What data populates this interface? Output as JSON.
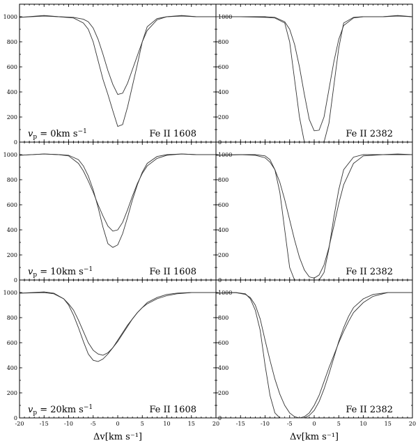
{
  "chart_data": {
    "type": "line",
    "grid": false,
    "xlim": [
      -20,
      20
    ],
    "ylim": [
      0,
      1100
    ],
    "x_ticks": [
      -20,
      -15,
      -10,
      -5,
      0,
      5,
      10,
      15,
      20
    ],
    "y_ticks": [
      0,
      200,
      400,
      600,
      800,
      1000
    ],
    "xlabel": "Δv[km s⁻¹]",
    "panels": [
      {
        "row": 0,
        "col": 0,
        "vp_label": "v",
        "vp_sub": "p",
        "vp_value": " = 0km s",
        "vp_exp": "−1",
        "line_label": "Fe II 1608",
        "series": [
          {
            "x": [
              -20,
              -15,
              -12,
              -9,
              -7,
              -6,
              -5,
              -4,
              -3,
              -2,
              -1,
              0,
              1,
              2,
              3,
              4,
              5,
              6,
              8,
              10,
              13,
              16,
              20
            ],
            "y": [
              995,
              1010,
              1000,
              990,
              950,
              900,
              800,
              650,
              500,
              380,
              250,
              125,
              140,
              280,
              450,
              620,
              800,
              920,
              985,
              1000,
              1005,
              1000,
              1000
            ]
          },
          {
            "x": [
              -20,
              -15,
              -12,
              -9,
              -7,
              -6,
              -5,
              -4,
              -3,
              -2,
              -1,
              0,
              1,
              2,
              3,
              4,
              5,
              6,
              8,
              10,
              13,
              16,
              20
            ],
            "y": [
              995,
              1005,
              1000,
              995,
              980,
              960,
              910,
              820,
              700,
              570,
              460,
              380,
              390,
              470,
              580,
              690,
              800,
              890,
              975,
              1000,
              1010,
              1000,
              1000
            ]
          }
        ]
      },
      {
        "row": 0,
        "col": 1,
        "vp_label": "",
        "vp_sub": "",
        "vp_value": "",
        "vp_exp": "",
        "line_label": "Fe II 2382",
        "series": [
          {
            "x": [
              -20,
              -15,
              -10,
              -8,
              -6,
              -5,
              -4,
              -3,
              -2,
              -1,
              0,
              1,
              2,
              3,
              4,
              5,
              6,
              8,
              10,
              14,
              17,
              20
            ],
            "y": [
              1000,
              1000,
              995,
              990,
              950,
              800,
              500,
              200,
              0,
              0,
              0,
              0,
              0,
              150,
              450,
              750,
              950,
              995,
              1000,
              1000,
              1010,
              1000
            ]
          },
          {
            "x": [
              -20,
              -15,
              -10,
              -8,
              -6,
              -5,
              -4,
              -3,
              -2,
              -1,
              0,
              1,
              2,
              3,
              4,
              5,
              6,
              8,
              10,
              14,
              17,
              20
            ],
            "y": [
              1000,
              1000,
              1000,
              995,
              960,
              900,
              780,
              600,
              380,
              180,
              90,
              95,
              200,
              420,
              640,
              820,
              930,
              990,
              1000,
              1000,
              1005,
              1000
            ]
          }
        ]
      },
      {
        "row": 1,
        "col": 0,
        "vp_label": "v",
        "vp_sub": "p",
        "vp_value": " = 10km s",
        "vp_exp": "−1",
        "line_label": "Fe II 1608",
        "series": [
          {
            "x": [
              -20,
              -15,
              -12,
              -10,
              -8,
              -7,
              -6,
              -5,
              -4,
              -3,
              -2,
              -1,
              0,
              1,
              2,
              3,
              4,
              5,
              6,
              8,
              10,
              13,
              16,
              20
            ],
            "y": [
              995,
              1005,
              1000,
              995,
              960,
              910,
              830,
              720,
              580,
              420,
              290,
              260,
              280,
              370,
              500,
              640,
              760,
              860,
              930,
              985,
              1000,
              1005,
              1000,
              1000
            ]
          },
          {
            "x": [
              -20,
              -15,
              -12,
              -10,
              -8,
              -7,
              -6,
              -5,
              -4,
              -3,
              -2,
              -1,
              0,
              1,
              2,
              3,
              4,
              5,
              6,
              8,
              10,
              13,
              16,
              20
            ],
            "y": [
              995,
              1005,
              1000,
              990,
              930,
              870,
              790,
              700,
              600,
              510,
              430,
              390,
              400,
              460,
              560,
              670,
              770,
              850,
              910,
              970,
              995,
              1005,
              1000,
              1000
            ]
          }
        ]
      },
      {
        "row": 1,
        "col": 1,
        "vp_label": "",
        "vp_sub": "",
        "vp_value": "",
        "vp_exp": "",
        "line_label": "Fe II 2382",
        "series": [
          {
            "x": [
              -20,
              -15,
              -12,
              -10,
              -9,
              -8,
              -7,
              -6,
              -5,
              -4,
              -3,
              -2,
              -1,
              0,
              1,
              2,
              3,
              4,
              5,
              6,
              8,
              10,
              14,
              17,
              20
            ],
            "y": [
              995,
              1000,
              1000,
              990,
              960,
              880,
              700,
              400,
              100,
              0,
              0,
              0,
              0,
              0,
              0,
              60,
              250,
              500,
              720,
              880,
              980,
              1000,
              1000,
              1000,
              1000
            ]
          },
          {
            "x": [
              -20,
              -15,
              -12,
              -10,
              -9,
              -8,
              -7,
              -6,
              -5,
              -4,
              -3,
              -2,
              -1,
              0,
              1,
              2,
              3,
              4,
              5,
              6,
              8,
              10,
              14,
              17,
              20
            ],
            "y": [
              995,
              1000,
              995,
              975,
              940,
              880,
              780,
              640,
              480,
              320,
              180,
              80,
              25,
              15,
              40,
              120,
              260,
              430,
              610,
              760,
              930,
              990,
              1000,
              1005,
              1000
            ]
          }
        ]
      },
      {
        "row": 2,
        "col": 0,
        "vp_label": "v",
        "vp_sub": "p",
        "vp_value": " = 20km s",
        "vp_exp": "−1",
        "line_label": "Fe II 1608",
        "series": [
          {
            "x": [
              -20,
              -15,
              -13,
              -11,
              -10,
              -9,
              -8,
              -7,
              -6,
              -5,
              -4,
              -3,
              -2,
              -1,
              0,
              1,
              2,
              3,
              4,
              5,
              6,
              8,
              10,
              12,
              15,
              20
            ],
            "y": [
              995,
              1005,
              995,
              950,
              900,
              820,
              720,
              610,
              510,
              460,
              450,
              470,
              510,
              560,
              620,
              680,
              740,
              790,
              840,
              880,
              910,
              950,
              975,
              990,
              1000,
              1000
            ]
          },
          {
            "x": [
              -20,
              -15,
              -13,
              -11,
              -10,
              -9,
              -8,
              -7,
              -6,
              -5,
              -4,
              -3,
              -2,
              -1,
              0,
              1,
              2,
              3,
              4,
              5,
              6,
              8,
              10,
              12,
              15,
              20
            ],
            "y": [
              995,
              1000,
              990,
              950,
              910,
              860,
              780,
              690,
              600,
              540,
              510,
              500,
              520,
              560,
              610,
              670,
              730,
              790,
              840,
              880,
              920,
              960,
              985,
              995,
              1000,
              1000
            ]
          }
        ]
      },
      {
        "row": 2,
        "col": 1,
        "vp_label": "",
        "vp_sub": "",
        "vp_value": "",
        "vp_exp": "",
        "line_label": "Fe II 2382",
        "series": [
          {
            "x": [
              -20,
              -16,
              -14,
              -13,
              -12,
              -11,
              -10,
              -9,
              -8,
              -7,
              -6,
              -5,
              -4,
              -3,
              -2,
              -1,
              0,
              1,
              2,
              3,
              4,
              5,
              6,
              7,
              8,
              10,
              12,
              15,
              20
            ],
            "y": [
              995,
              1000,
              990,
              950,
              860,
              700,
              420,
              180,
              40,
              0,
              0,
              0,
              0,
              0,
              0,
              20,
              60,
              130,
              230,
              350,
              480,
              610,
              720,
              810,
              880,
              950,
              985,
              1000,
              1000
            ]
          },
          {
            "x": [
              -20,
              -16,
              -14,
              -13,
              -12,
              -11,
              -10,
              -9,
              -8,
              -7,
              -6,
              -5,
              -4,
              -3,
              -2,
              -1,
              0,
              1,
              2,
              3,
              4,
              5,
              6,
              7,
              8,
              10,
              12,
              15,
              20
            ],
            "y": [
              995,
              1000,
              985,
              960,
              900,
              790,
              620,
              460,
              310,
              190,
              100,
              40,
              10,
              0,
              10,
              40,
              100,
              180,
              290,
              400,
              500,
              600,
              690,
              770,
              840,
              920,
              970,
              1000,
              1000
            ]
          }
        ]
      }
    ]
  }
}
